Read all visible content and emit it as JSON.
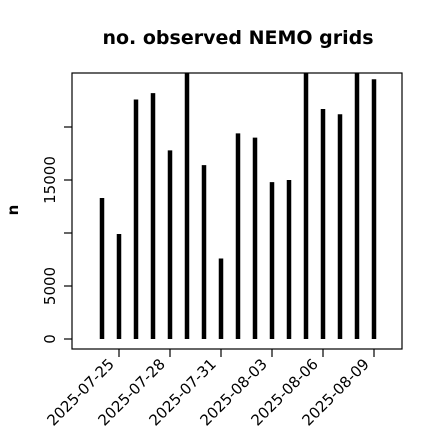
{
  "chart_data": {
    "type": "bar",
    "title": "no. observed NEMO grids",
    "xlabel": "",
    "ylabel": "n",
    "ylim": [
      0,
      25500
    ],
    "grid": false,
    "x_ticks": [
      "2025-07-25",
      "2025-07-28",
      "2025-07-31",
      "2025-08-03",
      "2025-08-06",
      "2025-08-09"
    ],
    "y_ticks": [
      0,
      5000,
      15000
    ],
    "y_tick_labels": [
      "0",
      "5000",
      "15000"
    ],
    "x": [
      "2025-07-24",
      "2025-07-25",
      "2025-07-26",
      "2025-07-27",
      "2025-07-28",
      "2025-07-29",
      "2025-07-30",
      "2025-07-31",
      "2025-08-01",
      "2025-08-02",
      "2025-08-03",
      "2025-08-04",
      "2025-08-05",
      "2025-08-06",
      "2025-08-07",
      "2025-08-08",
      "2025-08-09"
    ],
    "values": [
      13300,
      9900,
      22600,
      23200,
      17800,
      25600,
      16400,
      7600,
      19400,
      19000,
      14800,
      15000,
      25600,
      21700,
      21200,
      25600,
      24500
    ],
    "bar_color": "#000000"
  }
}
